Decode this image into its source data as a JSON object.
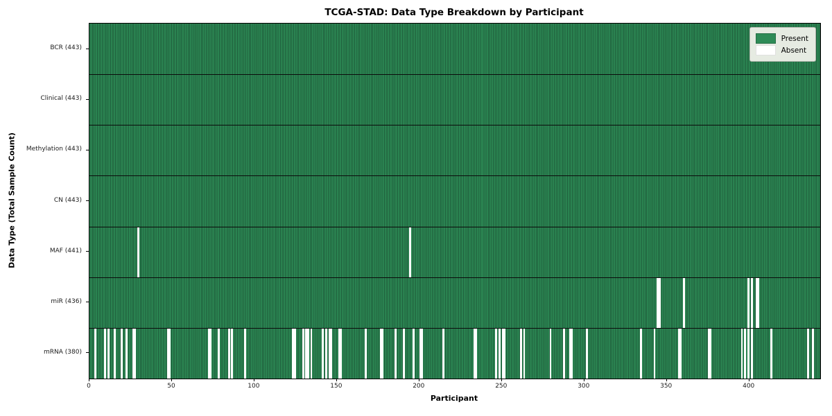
{
  "title": "TCGA-STAD: Data Type Breakdown by Participant",
  "xlabel": "Participant",
  "ylabel": "Data Type (Total Sample Count)",
  "legend": {
    "present_label": "Present",
    "absent_label": "Absent"
  },
  "colors": {
    "present": "#2E8B57",
    "present_stripe_light": "#2E8F58",
    "present_stripe_dark": "#1D5838",
    "absent": "#FFFFFF",
    "row_separator": "#0B0B0B",
    "frame": "#000000"
  },
  "chart_data": {
    "type": "heatmap",
    "title": "TCGA-STAD: Data Type Breakdown by Participant",
    "xlabel": "Participant",
    "ylabel": "Data Type (Total Sample Count)",
    "legend_entries": [
      "Present",
      "Absent"
    ],
    "legend_position": "upper right",
    "n_participants": 443,
    "x_range": [
      0,
      443
    ],
    "x_ticks": [
      0,
      50,
      100,
      150,
      200,
      250,
      300,
      350,
      400
    ],
    "rows": [
      {
        "label": "BCR (443)",
        "data_type": "BCR",
        "total": 443,
        "absent_participants": []
      },
      {
        "label": "Clinical (443)",
        "data_type": "Clinical",
        "total": 443,
        "absent_participants": []
      },
      {
        "label": "Methylation (443)",
        "data_type": "Methylation",
        "total": 443,
        "absent_participants": []
      },
      {
        "label": "CN (443)",
        "data_type": "CN",
        "total": 443,
        "absent_participants": []
      },
      {
        "label": "MAF (441)",
        "data_type": "MAF",
        "total": 441,
        "absent_participants": [
          29,
          194
        ]
      },
      {
        "label": "miR (436)",
        "data_type": "miR",
        "total": 436,
        "absent_participants": [
          344,
          345,
          360,
          399,
          401,
          404,
          405
        ]
      },
      {
        "label": "mRNA (380)",
        "data_type": "mRNA",
        "total": 380,
        "absent_participants": [
          3,
          9,
          11,
          15,
          19,
          22,
          26,
          27,
          47,
          48,
          72,
          73,
          78,
          84,
          86,
          94,
          123,
          124,
          129,
          131,
          132,
          134,
          141,
          143,
          145,
          146,
          151,
          152,
          167,
          176,
          177,
          185,
          190,
          196,
          200,
          201,
          214,
          233,
          234,
          246,
          248,
          250,
          251,
          261,
          263,
          279,
          287,
          291,
          292,
          301,
          334,
          342,
          357,
          358,
          375,
          376,
          395,
          397,
          399,
          401,
          413,
          435,
          438
        ]
      }
    ]
  }
}
